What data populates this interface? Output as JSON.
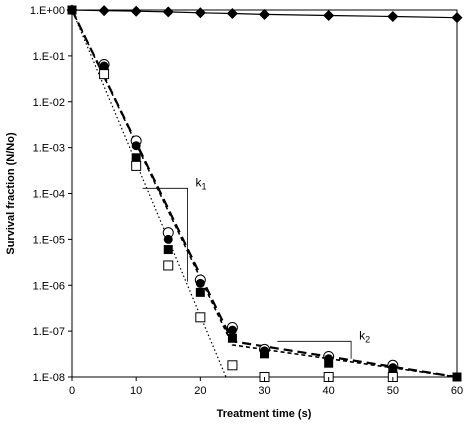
{
  "chart_data": {
    "type": "scatter",
    "title": "",
    "xlabel": "Treatment time (s)",
    "ylabel": "Survival fraction (N/No)",
    "x_scale": "linear",
    "y_scale": "log",
    "xlim": [
      0,
      60
    ],
    "ylim": [
      1e-08,
      1
    ],
    "x_ticks": [
      0,
      10,
      20,
      30,
      40,
      50,
      60
    ],
    "x_tick_labels": [
      "0",
      "10",
      "20",
      "30",
      "40",
      "50",
      "60"
    ],
    "y_ticks": [
      1e-08,
      1e-07,
      1e-06,
      1e-05,
      0.0001,
      0.001,
      0.01,
      0.1,
      1
    ],
    "y_tick_labels": [
      "1.E-08",
      "1.E-07",
      "1.E-06",
      "1.E-05",
      "1.E-04",
      "1.E-03",
      "1.E-02",
      "1.E-01",
      "1.E+00"
    ],
    "grid": false,
    "legend": "none",
    "series": [
      {
        "marker": "diamond-filled",
        "line": "solid",
        "x": [
          0,
          5,
          10,
          15,
          20,
          25,
          30,
          40,
          50,
          60
        ],
        "y": [
          1,
          0.97,
          0.94,
          0.91,
          0.87,
          0.84,
          0.8,
          0.76,
          0.72,
          0.68
        ]
      },
      {
        "marker": "circle-open",
        "line": "none",
        "x": [
          5,
          10,
          15,
          20,
          25,
          30,
          40,
          50
        ],
        "y": [
          0.065,
          0.0014,
          1.4e-05,
          1.3e-06,
          1.2e-07,
          4e-08,
          2.8e-08,
          1.8e-08
        ]
      },
      {
        "marker": "circle-filled",
        "line": "none",
        "x": [
          5,
          10,
          15,
          20,
          25,
          30,
          40,
          50
        ],
        "y": [
          0.06,
          0.0011,
          1e-05,
          1.1e-06,
          1.05e-07,
          3.7e-08,
          2.5e-08,
          1.6e-08
        ]
      },
      {
        "marker": "square-filled",
        "line": "none",
        "x": [
          0,
          5,
          10,
          15,
          20,
          25,
          30,
          40,
          50,
          60
        ],
        "y": [
          1,
          0.05,
          0.0006,
          6e-06,
          7e-07,
          7e-08,
          3.2e-08,
          2e-08,
          1.3e-08,
          1e-08
        ]
      },
      {
        "marker": "square-open",
        "line": "none",
        "x": [
          5,
          10,
          15,
          20,
          25,
          30,
          40,
          50
        ],
        "y": [
          0.04,
          0.0004,
          2.7e-06,
          2e-07,
          1.8e-08,
          1e-08,
          1e-08,
          1e-08
        ]
      }
    ],
    "fit_lines": [
      {
        "style": "long-dash",
        "x": [
          0,
          25,
          60
        ],
        "y": [
          1,
          6e-08,
          1e-08
        ]
      },
      {
        "style": "short-dash",
        "x": [
          0,
          25,
          60
        ],
        "y": [
          1,
          5e-08,
          1e-08
        ]
      },
      {
        "style": "dotted",
        "x": [
          0,
          24
        ],
        "y": [
          1,
          1e-08
        ]
      }
    ],
    "annotations": [
      {
        "text": "k",
        "subscript": "1",
        "bracket": {
          "x_from": 11,
          "x_to": 18,
          "y_from": 0.00013,
          "y_to": 1.2e-06
        }
      },
      {
        "text": "k",
        "subscript": "2",
        "bracket": {
          "x_from": 32,
          "x_to": 43.5,
          "y_from": 6e-08,
          "y_to": 2.5e-08
        }
      }
    ]
  }
}
